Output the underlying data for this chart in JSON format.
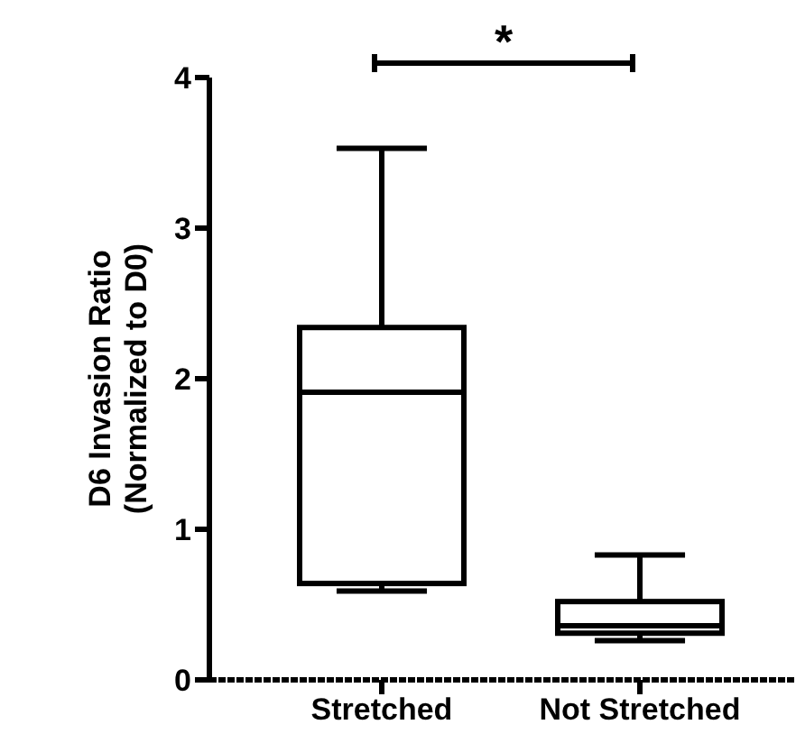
{
  "chart_data": {
    "type": "box",
    "categories": [
      "Stretched",
      "Not Stretched"
    ],
    "ylabel": "D6 Invasion Ratio (Normalized to D0)",
    "boxes": [
      {
        "low": 0.59,
        "q1": 0.64,
        "median": 1.91,
        "q3": 2.34,
        "high": 3.53
      },
      {
        "low": 0.26,
        "q1": 0.31,
        "median": 0.36,
        "q3": 0.52,
        "high": 0.83
      }
    ],
    "color": "#000000",
    "ylim": [
      0,
      4
    ],
    "yticks": [
      0,
      1,
      2,
      3,
      4
    ],
    "annotations": [
      "*"
    ],
    "grid": false,
    "legend": false
  }
}
